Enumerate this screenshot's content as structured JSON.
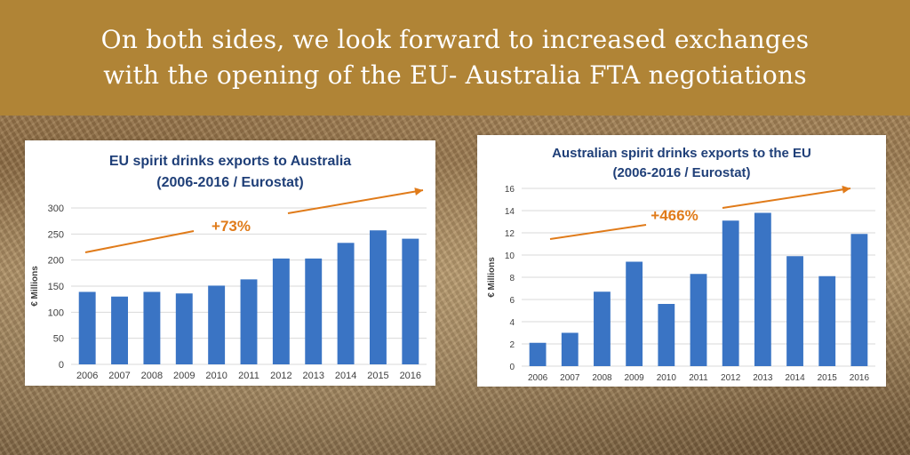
{
  "banner": {
    "line1": "On both sides, we look forward to increased exchanges",
    "line2": "with the opening of the EU- Australia FTA negotiations"
  },
  "colors": {
    "banner": "#b08436",
    "bar": "#3a74c4",
    "title": "#1f3f78",
    "arrow": "#e07b1a"
  },
  "chart_data": [
    {
      "type": "bar",
      "title": "EU spirit drinks exports to Australia",
      "subtitle": "(2006-2016 / Eurostat)",
      "ylabel": "€ Millions",
      "xlabel": "",
      "categories": [
        "2006",
        "2007",
        "2008",
        "2009",
        "2010",
        "2011",
        "2012",
        "2013",
        "2014",
        "2015",
        "2016"
      ],
      "values": [
        139,
        130,
        139,
        136,
        151,
        163,
        203,
        203,
        233,
        257,
        241
      ],
      "ylim": [
        0,
        300
      ],
      "yticks": [
        0,
        50,
        100,
        150,
        200,
        250,
        300
      ],
      "grid": true,
      "annotation": "+73%"
    },
    {
      "type": "bar",
      "title": "Australian spirit drinks exports to the EU",
      "subtitle": "(2006-2016 / Eurostat)",
      "ylabel": "€ Millions",
      "xlabel": "",
      "categories": [
        "2006",
        "2007",
        "2008",
        "2009",
        "2010",
        "2011",
        "2012",
        "2013",
        "2014",
        "2015",
        "2016"
      ],
      "values": [
        2.1,
        3.0,
        6.7,
        9.4,
        5.6,
        8.3,
        13.1,
        13.8,
        9.9,
        8.1,
        11.9
      ],
      "ylim": [
        0,
        16
      ],
      "yticks": [
        0,
        2,
        4,
        6,
        8,
        10,
        12,
        14,
        16
      ],
      "grid": true,
      "annotation": "+466%"
    }
  ]
}
